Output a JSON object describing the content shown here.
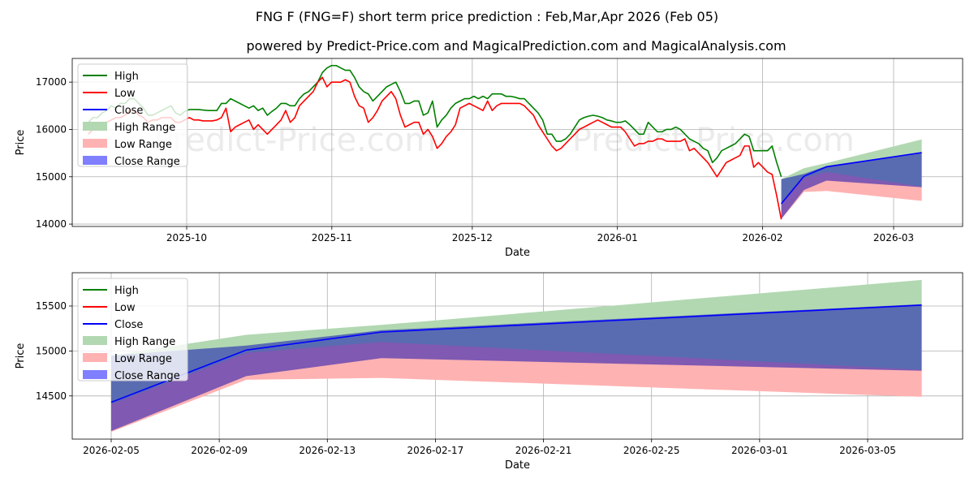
{
  "title_line1": "FNG F (FNG=F) short term price prediction : Feb,Mar,Apr 2026 (Feb 05)",
  "title_line2": "powered by Predict-Price.com and MagicalPrediction.com and MagicalAnalysis.com",
  "watermark": "Predict-Price.com",
  "colors": {
    "high": "#008000",
    "low": "#ff0000",
    "close": "#0000ff",
    "high_range": "#b2d8b2",
    "low_range": "#ffb2b2",
    "close_range": "#7f7fff"
  },
  "chart_data": [
    {
      "type": "line",
      "xlabel": "Date",
      "ylabel": "Price",
      "x_ticks": [
        "2025-10",
        "2025-11",
        "2025-12",
        "2026-01",
        "2026-02",
        "2026-03"
      ],
      "y_ticks": [
        "14000",
        "15000",
        "16000",
        "17000"
      ],
      "ylim": [
        13950,
        17500
      ],
      "legend": [
        "High",
        "Low",
        "Close",
        "High Range",
        "Low Range",
        "Close Range"
      ],
      "legend_position": "top-left",
      "history_start_day": 0,
      "series": [
        {
          "name": "High",
          "values": [
            16150,
            16250,
            16250,
            16350,
            16400,
            16500,
            16450,
            16550,
            16550,
            16650,
            16650,
            16550,
            16450,
            16300,
            16300,
            16350,
            16400,
            16450,
            16500,
            16350,
            16300,
            16380,
            16420,
            16420,
            16420,
            16410,
            16400,
            16400,
            16400,
            16550,
            16550,
            16650,
            16600,
            16550,
            16500,
            16450,
            16500,
            16400,
            16450,
            16300,
            16380,
            16450,
            16550,
            16550,
            16500,
            16500,
            16650,
            16750,
            16800,
            16900,
            17000,
            17200,
            17300,
            17350,
            17350,
            17300,
            17250,
            17250,
            17100,
            16900,
            16800,
            16750,
            16600,
            16700,
            16800,
            16900,
            16950,
            17000,
            16800,
            16550,
            16550,
            16600,
            16600,
            16300,
            16350,
            16600,
            16050,
            16200,
            16300,
            16450,
            16550,
            16600,
            16650,
            16650,
            16700,
            16650,
            16700,
            16650,
            16750,
            16750,
            16750,
            16700,
            16700,
            16680,
            16650,
            16650,
            16550,
            16450,
            16350,
            16200,
            15900,
            15900,
            15750,
            15750,
            15800,
            15900,
            16050,
            16200,
            16250,
            16280,
            16300,
            16280,
            16250,
            16200,
            16180,
            16150,
            16150,
            16180,
            16100,
            16000,
            15900,
            15900,
            16150,
            16050,
            15950,
            15950,
            16000,
            16000,
            16050,
            16000,
            15900,
            15800,
            15750,
            15700,
            15600,
            15550,
            15300,
            15400,
            15550,
            15600,
            15650,
            15700,
            15800,
            15900,
            15850,
            15550,
            15550,
            15550,
            15550,
            15650,
            15300,
            15000
          ]
        },
        {
          "name": "Low",
          "values": [
            15900,
            16000,
            16050,
            16050,
            16150,
            16200,
            16250,
            16250,
            16300,
            16400,
            16400,
            16300,
            16250,
            16150,
            16200,
            16200,
            16250,
            16250,
            16250,
            16150,
            16150,
            16200,
            16250,
            16200,
            16200,
            16180,
            16180,
            16180,
            16200,
            16250,
            16450,
            15950,
            16050,
            16100,
            16150,
            16200,
            16000,
            16100,
            16000,
            15900,
            16000,
            16100,
            16200,
            16400,
            16150,
            16250,
            16500,
            16600,
            16700,
            16800,
            17000,
            17100,
            16900,
            17000,
            17000,
            17000,
            17050,
            17000,
            16700,
            16500,
            16450,
            16150,
            16250,
            16400,
            16600,
            16700,
            16800,
            16650,
            16300,
            16050,
            16100,
            16150,
            16150,
            15900,
            16000,
            15850,
            15600,
            15700,
            15850,
            15950,
            16100,
            16450,
            16500,
            16550,
            16500,
            16450,
            16400,
            16600,
            16400,
            16500,
            16550,
            16550,
            16550,
            16550,
            16550,
            16500,
            16400,
            16300,
            16100,
            15950,
            15800,
            15650,
            15550,
            15600,
            15700,
            15800,
            15900,
            16000,
            16050,
            16100,
            16150,
            16200,
            16150,
            16100,
            16050,
            16050,
            16050,
            15950,
            15800,
            15650,
            15700,
            15700,
            15750,
            15750,
            15800,
            15800,
            15750,
            15750,
            15750,
            15750,
            15800,
            15550,
            15600,
            15500,
            15400,
            15300,
            15150,
            15000,
            15150,
            15300,
            15350,
            15400,
            15450,
            15650,
            15650,
            15200,
            15300,
            15200,
            15100,
            15050,
            14600,
            14100
          ]
        },
        {
          "name": "Close",
          "values": [
            14430,
            15010,
            15210,
            15510
          ],
          "x_days": [
            127,
            132,
            137,
            158
          ]
        }
      ],
      "ranges": [
        {
          "name": "High Range",
          "upper": [
            14950,
            15180,
            15290,
            15790
          ],
          "lower": [
            14110,
            14700,
            14920,
            14770
          ],
          "x_days": [
            127,
            132,
            137,
            158
          ]
        },
        {
          "name": "Low Range",
          "upper": [
            14410,
            14980,
            15100,
            14790
          ],
          "lower": [
            14100,
            14680,
            14700,
            14490
          ],
          "x_days": [
            127,
            132,
            137,
            158
          ]
        },
        {
          "name": "Close Range",
          "upper": [
            14950,
            15060,
            15230,
            15520
          ],
          "lower": [
            14110,
            14720,
            14920,
            14780
          ],
          "x_days": [
            127,
            132,
            137,
            158
          ]
        }
      ]
    },
    {
      "type": "line",
      "xlabel": "Date",
      "ylabel": "Price",
      "x_ticks": [
        "2026-02-05",
        "2026-02-09",
        "2026-02-13",
        "2026-02-17",
        "2026-02-21",
        "2026-02-25",
        "2026-03-01",
        "2026-03-05"
      ],
      "y_ticks": [
        "14500",
        "15000",
        "15500"
      ],
      "ylim": [
        14020,
        15870
      ],
      "legend": [
        "High",
        "Low",
        "Close",
        "High Range",
        "Low Range",
        "Close Range"
      ],
      "legend_position": "top-left",
      "series": [
        {
          "name": "Close",
          "values": [
            14430,
            15010,
            15210,
            15510
          ],
          "x_days": [
            0,
            5,
            10,
            30
          ]
        }
      ],
      "ranges": [
        {
          "name": "High Range",
          "upper": [
            14950,
            15180,
            15290,
            15790
          ],
          "lower": [
            14110,
            14700,
            14920,
            14770
          ],
          "x_days": [
            0,
            5,
            10,
            30
          ]
        },
        {
          "name": "Low Range",
          "upper": [
            14410,
            14980,
            15100,
            14790
          ],
          "lower": [
            14100,
            14680,
            14700,
            14490
          ],
          "x_days": [
            0,
            5,
            10,
            30
          ]
        },
        {
          "name": "Close Range",
          "upper": [
            14950,
            15060,
            15230,
            15520
          ],
          "lower": [
            14110,
            14720,
            14920,
            14780
          ],
          "x_days": [
            0,
            5,
            10,
            30
          ]
        }
      ]
    }
  ]
}
